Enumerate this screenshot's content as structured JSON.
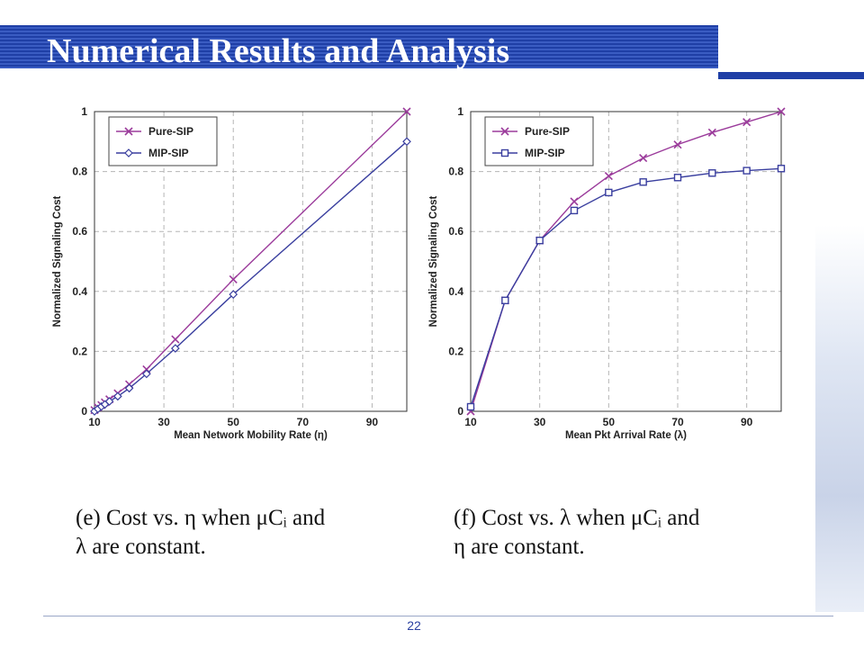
{
  "slide": {
    "title": "Numerical Results and Analysis",
    "page_number": "22",
    "colors": {
      "band": "#1f3fa6",
      "pure": "#9b3b9b",
      "mip": "#3a3f9f"
    }
  },
  "captions": {
    "left": "(e) Cost vs. η when μCᵢ and\nλ are constant.",
    "right": "(f) Cost vs. λ when μCᵢ and\nη are constant."
  },
  "chart_data": [
    {
      "type": "line",
      "xlabel": "Mean Network Mobility Rate (η)",
      "ylabel": "Normalized Signaling Cost",
      "xlim": [
        10,
        100
      ],
      "ylim": [
        0,
        1
      ],
      "xticks": [
        "10",
        "30",
        "50",
        "70",
        "90"
      ],
      "yticks": [
        "0",
        "0.2",
        "0.4",
        "0.6",
        "0.8",
        "1"
      ],
      "grid": true,
      "legend": "top-left",
      "series": [
        {
          "name": "Pure-SIP",
          "marker": "x",
          "x": [
            10,
            11,
            12,
            13,
            14.3,
            16.7,
            20,
            25,
            33.3,
            50,
            100
          ],
          "y": [
            0.004,
            0.013,
            0.021,
            0.03,
            0.04,
            0.06,
            0.09,
            0.14,
            0.24,
            0.44,
            1.0
          ]
        },
        {
          "name": "MIP-SIP",
          "marker": "diamond",
          "x": [
            10,
            11,
            12,
            13,
            14.3,
            16.7,
            20,
            25,
            33.3,
            50,
            100
          ],
          "y": [
            0.0,
            0.008,
            0.016,
            0.023,
            0.033,
            0.05,
            0.077,
            0.125,
            0.21,
            0.39,
            0.9
          ]
        }
      ]
    },
    {
      "type": "line",
      "xlabel": "Mean Pkt Arrival Rate (λ)",
      "ylabel": "Normalized Signaling Cost",
      "xlim": [
        10,
        100
      ],
      "ylim": [
        0,
        1
      ],
      "xticks": [
        "10",
        "30",
        "50",
        "70",
        "90"
      ],
      "yticks": [
        "0",
        "0.2",
        "0.4",
        "0.6",
        "0.8",
        "1"
      ],
      "grid": true,
      "legend": "top-left",
      "series": [
        {
          "name": "Pure-SIP",
          "marker": "x",
          "x": [
            10,
            20,
            30,
            40,
            50,
            60,
            70,
            80,
            90,
            100
          ],
          "y": [
            0.0,
            0.37,
            0.57,
            0.7,
            0.785,
            0.845,
            0.89,
            0.93,
            0.965,
            1.0
          ]
        },
        {
          "name": "MIP-SIP",
          "marker": "square",
          "x": [
            10,
            20,
            30,
            40,
            50,
            60,
            70,
            80,
            90,
            100
          ],
          "y": [
            0.015,
            0.37,
            0.57,
            0.67,
            0.73,
            0.765,
            0.78,
            0.795,
            0.803,
            0.81
          ]
        }
      ]
    }
  ]
}
